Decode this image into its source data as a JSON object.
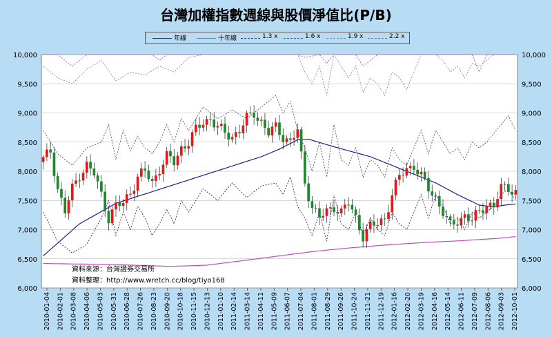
{
  "chart_data": {
    "type": "candlestick",
    "title": "台灣加權指數週線與股價淨值比(P/B)",
    "xlabel": "",
    "ylabel": "",
    "ylim": [
      6000,
      10000
    ],
    "y_ticks": [
      "6,000",
      "6,500",
      "7,000",
      "7,500",
      "8,000",
      "8,500",
      "9,000",
      "9,500",
      "10,000"
    ],
    "grid": true,
    "legend_position": "top",
    "legend": [
      {
        "name": "年線",
        "color": "#1f1f8f",
        "style": "solid"
      },
      {
        "name": "十年線",
        "color": "#c04ac0",
        "style": "solid"
      },
      {
        "name": "1.3 x",
        "color": "#333399",
        "style": "dashed"
      },
      {
        "name": "1.6 x",
        "color": "#555555",
        "style": "dashed"
      },
      {
        "name": "1.9 x",
        "color": "#888888",
        "style": "dashed"
      },
      {
        "name": "2.2 x",
        "color": "#aa55aa",
        "style": "dashed"
      }
    ],
    "x_tick_labels": [
      "2010-01-04",
      "2010-02-01",
      "2010-03-08",
      "2010-04-06",
      "2010-05-03",
      "2010-05-31",
      "2010-06-28",
      "2010-07-26",
      "2010-08-23",
      "2010-09-20",
      "2010-10-18",
      "2010-11-15",
      "2010-12-13",
      "2011-01-10",
      "2011-02-14",
      "2011-03-14",
      "2011-04-11",
      "2011-05-09",
      "2011-06-07",
      "2011-07-04",
      "2011-08-01",
      "2011-08-29",
      "2011-09-26",
      "2011-10-24",
      "2011-11-21",
      "2011-12-19",
      "2012-01-16",
      "2012-02-20",
      "2012-03-19",
      "2012-04-16",
      "2012-05-14",
      "2012-06-11",
      "2012-07-09",
      "2012-08-06",
      "2012-09-03",
      "2012-10-01"
    ],
    "close_anchors": [
      [
        0,
        8200
      ],
      [
        2,
        8350
      ],
      [
        4,
        7700
      ],
      [
        6,
        7300
      ],
      [
        8,
        7700
      ],
      [
        10,
        7950
      ],
      [
        12,
        8100
      ],
      [
        14,
        7950
      ],
      [
        16,
        7600
      ],
      [
        18,
        7200
      ],
      [
        20,
        7400
      ],
      [
        22,
        7450
      ],
      [
        24,
        7650
      ],
      [
        26,
        7900
      ],
      [
        28,
        8000
      ],
      [
        30,
        7800
      ],
      [
        32,
        8050
      ],
      [
        34,
        8250
      ],
      [
        36,
        8150
      ],
      [
        38,
        8400
      ],
      [
        40,
        8500
      ],
      [
        42,
        8700
      ],
      [
        44,
        8850
      ],
      [
        46,
        8900
      ],
      [
        48,
        8750
      ],
      [
        50,
        8650
      ],
      [
        52,
        8600
      ],
      [
        54,
        8700
      ],
      [
        56,
        8900
      ],
      [
        58,
        9000
      ],
      [
        60,
        8850
      ],
      [
        62,
        8650
      ],
      [
        64,
        8750
      ],
      [
        66,
        8600
      ],
      [
        68,
        8500
      ],
      [
        70,
        8700
      ],
      [
        72,
        7800
      ],
      [
        74,
        7400
      ],
      [
        76,
        7200
      ],
      [
        78,
        7300
      ],
      [
        80,
        7400
      ],
      [
        82,
        7300
      ],
      [
        84,
        7450
      ],
      [
        86,
        7200
      ],
      [
        88,
        6900
      ],
      [
        90,
        7050
      ],
      [
        92,
        7100
      ],
      [
        94,
        7200
      ],
      [
        96,
        7600
      ],
      [
        98,
        7900
      ],
      [
        100,
        8050
      ],
      [
        102,
        8100
      ],
      [
        104,
        7900
      ],
      [
        106,
        7700
      ],
      [
        108,
        7550
      ],
      [
        110,
        7300
      ],
      [
        112,
        7050
      ],
      [
        114,
        7150
      ],
      [
        116,
        7250
      ],
      [
        118,
        7150
      ],
      [
        120,
        7300
      ],
      [
        122,
        7450
      ],
      [
        124,
        7400
      ],
      [
        126,
        7700
      ],
      [
        128,
        7720
      ],
      [
        130,
        7650
      ]
    ],
    "year_line": [
      [
        0,
        6550
      ],
      [
        10,
        7100
      ],
      [
        20,
        7450
      ],
      [
        30,
        7650
      ],
      [
        40,
        7850
      ],
      [
        50,
        8050
      ],
      [
        60,
        8250
      ],
      [
        65,
        8380
      ],
      [
        70,
        8540
      ],
      [
        73,
        8550
      ],
      [
        80,
        8420
      ],
      [
        90,
        8250
      ],
      [
        100,
        8000
      ],
      [
        108,
        7800
      ],
      [
        114,
        7600
      ],
      [
        120,
        7420
      ],
      [
        124,
        7390
      ],
      [
        127,
        7420
      ],
      [
        130,
        7440
      ]
    ],
    "ten_year_line": [
      [
        0,
        6420
      ],
      [
        20,
        6400
      ],
      [
        35,
        6370
      ],
      [
        45,
        6390
      ],
      [
        55,
        6470
      ],
      [
        65,
        6550
      ],
      [
        75,
        6630
      ],
      [
        85,
        6690
      ],
      [
        95,
        6740
      ],
      [
        105,
        6780
      ],
      [
        115,
        6810
      ],
      [
        125,
        6850
      ],
      [
        130,
        6880
      ]
    ],
    "pb_1_3": [
      [
        0,
        7300
      ],
      [
        4,
        6800
      ],
      [
        8,
        6600
      ],
      [
        12,
        6750
      ],
      [
        16,
        7200
      ],
      [
        18,
        7500
      ],
      [
        20,
        6900
      ],
      [
        22,
        7300
      ],
      [
        24,
        7000
      ],
      [
        26,
        7400
      ],
      [
        28,
        7200
      ],
      [
        30,
        6900
      ],
      [
        32,
        7100
      ],
      [
        34,
        7350
      ],
      [
        36,
        7100
      ],
      [
        38,
        7500
      ],
      [
        40,
        7300
      ],
      [
        44,
        7700
      ],
      [
        48,
        7500
      ],
      [
        52,
        7800
      ],
      [
        56,
        7550
      ],
      [
        60,
        7750
      ],
      [
        64,
        7800
      ],
      [
        66,
        7600
      ],
      [
        68,
        7900
      ],
      [
        70,
        7400
      ],
      [
        72,
        7200
      ],
      [
        74,
        6900
      ],
      [
        76,
        7300
      ],
      [
        78,
        6800
      ],
      [
        80,
        7600
      ],
      [
        82,
        7100
      ],
      [
        84,
        7000
      ],
      [
        86,
        7300
      ],
      [
        88,
        6900
      ],
      [
        90,
        7200
      ],
      [
        92,
        7000
      ],
      [
        94,
        6900
      ],
      [
        96,
        7300
      ],
      [
        98,
        7100
      ],
      [
        100,
        7000
      ],
      [
        102,
        7300
      ],
      [
        104,
        7600
      ],
      [
        106,
        7200
      ],
      [
        108,
        7600
      ],
      [
        110,
        7400
      ],
      [
        112,
        7100
      ],
      [
        114,
        7200
      ],
      [
        116,
        7000
      ],
      [
        118,
        7300
      ],
      [
        120,
        7200
      ],
      [
        122,
        7300
      ],
      [
        124,
        7400
      ],
      [
        126,
        7600
      ],
      [
        128,
        7700
      ],
      [
        130,
        7500
      ]
    ],
    "pb_1_6": [
      [
        0,
        8700
      ],
      [
        4,
        8300
      ],
      [
        8,
        8100
      ],
      [
        12,
        8400
      ],
      [
        16,
        8500
      ],
      [
        18,
        8800
      ],
      [
        20,
        8200
      ],
      [
        22,
        8700
      ],
      [
        24,
        8350
      ],
      [
        26,
        8600
      ],
      [
        28,
        8400
      ],
      [
        30,
        8300
      ],
      [
        32,
        8500
      ],
      [
        34,
        8800
      ],
      [
        36,
        8500
      ],
      [
        38,
        8900
      ],
      [
        40,
        8700
      ],
      [
        44,
        9100
      ],
      [
        48,
        8900
      ],
      [
        52,
        9050
      ],
      [
        56,
        8900
      ],
      [
        60,
        9100
      ],
      [
        64,
        9300
      ],
      [
        66,
        9000
      ],
      [
        68,
        9200
      ],
      [
        70,
        8700
      ],
      [
        72,
        8400
      ],
      [
        74,
        8000
      ],
      [
        76,
        8500
      ],
      [
        78,
        7900
      ],
      [
        80,
        8800
      ],
      [
        82,
        8200
      ],
      [
        84,
        8100
      ],
      [
        86,
        8400
      ],
      [
        88,
        7900
      ],
      [
        90,
        8200
      ],
      [
        92,
        8100
      ],
      [
        94,
        7900
      ],
      [
        96,
        8400
      ],
      [
        98,
        8200
      ],
      [
        100,
        8100
      ],
      [
        102,
        8400
      ],
      [
        104,
        8700
      ],
      [
        106,
        8300
      ],
      [
        108,
        8700
      ],
      [
        110,
        8500
      ],
      [
        112,
        8300
      ],
      [
        114,
        8400
      ],
      [
        116,
        8200
      ],
      [
        118,
        8500
      ],
      [
        120,
        8400
      ],
      [
        122,
        8500
      ],
      [
        124,
        8650
      ],
      [
        126,
        8800
      ],
      [
        128,
        8950
      ],
      [
        130,
        8700
      ]
    ],
    "pb_1_9": [
      [
        0,
        9800
      ],
      [
        4,
        9600
      ],
      [
        8,
        9500
      ],
      [
        12,
        9750
      ],
      [
        16,
        9900
      ],
      [
        20,
        9550
      ],
      [
        24,
        9700
      ],
      [
        28,
        9650
      ],
      [
        32,
        9800
      ],
      [
        36,
        9700
      ],
      [
        40,
        9950
      ],
      [
        44,
        10000
      ],
      [
        70,
        10000
      ],
      [
        72,
        9700
      ],
      [
        74,
        9500
      ],
      [
        76,
        9800
      ],
      [
        78,
        9300
      ],
      [
        80,
        10000
      ],
      [
        84,
        9600
      ],
      [
        86,
        9800
      ],
      [
        88,
        9350
      ],
      [
        90,
        9600
      ],
      [
        92,
        9500
      ],
      [
        94,
        9300
      ],
      [
        96,
        9700
      ],
      [
        98,
        9600
      ],
      [
        100,
        9400
      ],
      [
        102,
        9700
      ],
      [
        104,
        10000
      ],
      [
        108,
        10000
      ],
      [
        110,
        9900
      ],
      [
        112,
        9700
      ],
      [
        114,
        9800
      ],
      [
        116,
        9600
      ],
      [
        118,
        9850
      ],
      [
        120,
        9800
      ],
      [
        122,
        9900
      ],
      [
        124,
        10000
      ],
      [
        130,
        10000
      ]
    ],
    "pb_2_2": [
      [
        0,
        10000
      ],
      [
        4,
        10000
      ],
      [
        8,
        9800
      ],
      [
        12,
        10000
      ],
      [
        30,
        10000
      ],
      [
        32,
        9900
      ],
      [
        34,
        10000
      ],
      [
        70,
        10000
      ],
      [
        72,
        9950
      ],
      [
        76,
        10000
      ],
      [
        78,
        9850
      ],
      [
        80,
        10000
      ],
      [
        86,
        10000
      ],
      [
        88,
        9800
      ],
      [
        92,
        10000
      ],
      [
        118,
        10000
      ],
      [
        120,
        9700
      ],
      [
        122,
        10000
      ],
      [
        130,
        10000
      ]
    ]
  },
  "source_lines": [
    "資料來源：台灣證券交易所",
    "資料整理：http://www.wretch.cc/blog/tiyo168"
  ],
  "colors": {
    "background": "#b9dcf5",
    "plot_background": "#ffffff",
    "up_candle": "#e41a1a",
    "down_candle": "#1a8a2a",
    "year_line": "#1f1f8f",
    "ten_year_line": "#c04ac0"
  }
}
